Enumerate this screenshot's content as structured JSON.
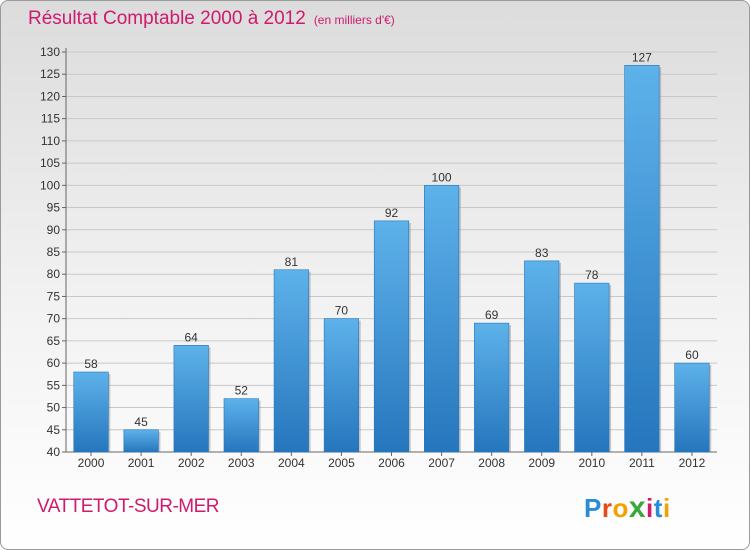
{
  "title": "Résultat Comptable 2000 à 2012",
  "subtitle": "(en milliers d'€)",
  "place": "VATTETOT-SUR-MER",
  "logo": {
    "letters": [
      "P",
      "r",
      "o",
      "x",
      "i",
      "t",
      "i"
    ],
    "colors": [
      "#2a8bd6",
      "#e64a19",
      "#f4a000",
      "#3aa83a",
      "#d01a6e",
      "#2a8bd6",
      "#f4a000"
    ]
  },
  "colors": {
    "bar": "#3f9ce0",
    "bar_light": "#5eb2ea",
    "bar_dark": "#2576bd",
    "title": "#d01a6e",
    "grid": "#c8c8c8"
  },
  "chart_data": {
    "type": "bar",
    "title": "Résultat Comptable 2000 à 2012",
    "subtitle": "(en milliers d'€)",
    "categories": [
      "2000",
      "2001",
      "2002",
      "2003",
      "2004",
      "2005",
      "2006",
      "2007",
      "2008",
      "2009",
      "2010",
      "2011",
      "2012"
    ],
    "values": [
      58,
      45,
      64,
      52,
      81,
      70,
      92,
      100,
      69,
      83,
      78,
      127,
      60
    ],
    "ylim": [
      40,
      130
    ],
    "yticks": [
      40,
      45,
      50,
      55,
      60,
      65,
      70,
      75,
      80,
      85,
      90,
      95,
      100,
      105,
      110,
      115,
      120,
      125,
      130
    ],
    "grid": true,
    "data_labels": true
  }
}
